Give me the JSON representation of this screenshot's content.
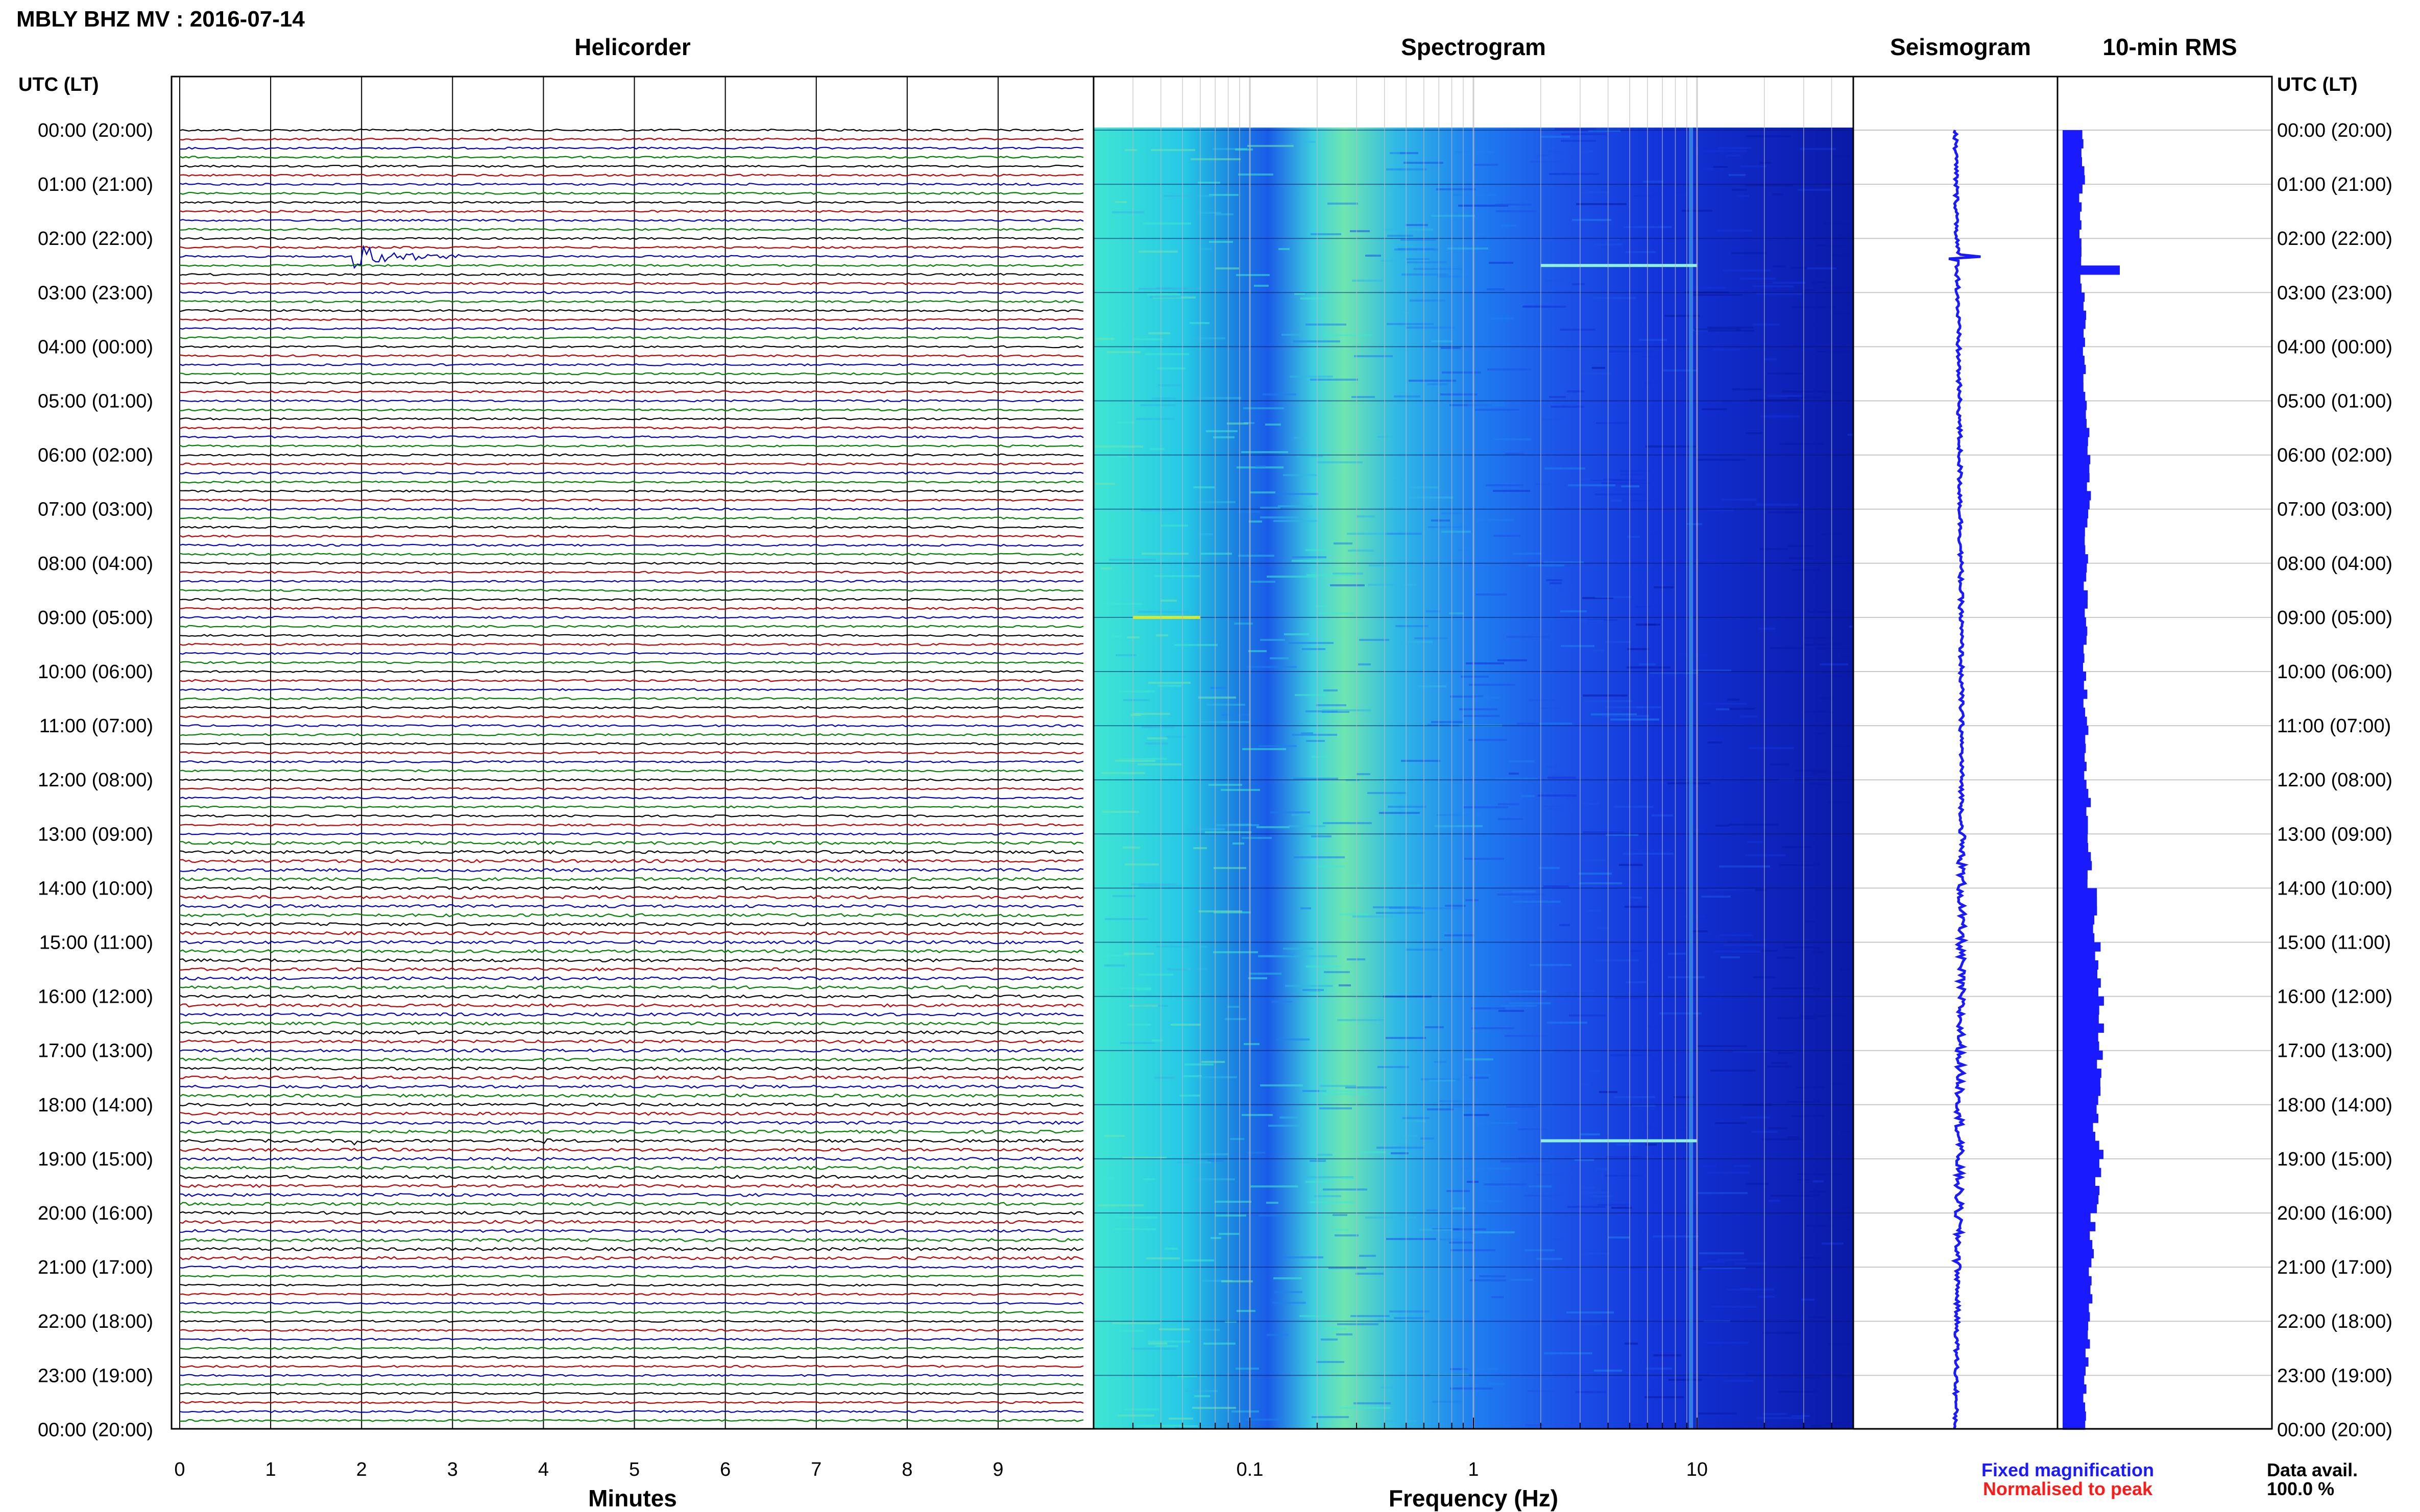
{
  "header": {
    "title": "MBLY BHZ MV : 2016-07-14",
    "panel_titles": [
      "Helicorder",
      "Spectrogram",
      "Seismogram",
      "10-min RMS"
    ],
    "left_axis_title": "UTC (LT)",
    "right_axis_title": "UTC (LT)"
  },
  "footer": {
    "minutes_label": "Minutes",
    "frequency_label": "Frequency (Hz)",
    "legend_fixed": "Fixed magnification",
    "legend_normalised": "Normalised to peak",
    "data_avail_label": "Data avail.",
    "data_avail_value": "100.0 %"
  },
  "colors": {
    "fixed_magnification": "#1a1aff",
    "normalised_to_peak": "#ff1a1a",
    "trace_cycle": [
      "#000000",
      "#c00000",
      "#0000c0",
      "#008000"
    ],
    "rms_bar": "#1a1aff",
    "seismogram": "#1a1aff"
  },
  "chart_data": [
    {
      "type": "line",
      "name": "helicorder",
      "title": "Helicorder",
      "xlabel": "Minutes",
      "x_ticks": [
        0,
        1,
        2,
        3,
        4,
        5,
        6,
        7,
        8,
        9
      ],
      "xlim": [
        0,
        10
      ],
      "rows_per_hour": 6,
      "hours": 24,
      "time_labels": [
        "00:00 (20:00)",
        "01:00 (21:00)",
        "02:00 (22:00)",
        "03:00 (23:00)",
        "04:00 (00:00)",
        "05:00 (01:00)",
        "06:00 (02:00)",
        "07:00 (03:00)",
        "08:00 (04:00)",
        "09:00 (05:00)",
        "10:00 (06:00)",
        "11:00 (07:00)",
        "12:00 (08:00)",
        "13:00 (09:00)",
        "14:00 (10:00)",
        "15:00 (11:00)",
        "16:00 (12:00)",
        "17:00 (13:00)",
        "18:00 (14:00)",
        "19:00 (15:00)",
        "20:00 (16:00)",
        "21:00 (17:00)",
        "22:00 (18:00)",
        "23:00 (19:00)",
        "00:00 (20:00)"
      ],
      "events": [
        {
          "time": "02:20",
          "minute": 1.9,
          "duration_min": 1.4,
          "amplitude": "large"
        },
        {
          "time": "01:00",
          "minute": 9.3,
          "duration_min": 0.2,
          "amplitude": "small"
        },
        {
          "time": "18:40",
          "minute": 1.9,
          "duration_min": 0.5,
          "amplitude": "medium"
        },
        {
          "time": "18:40",
          "minute": 4.0,
          "duration_min": 0.2,
          "amplitude": "medium"
        }
      ]
    },
    {
      "type": "heatmap",
      "name": "spectrogram",
      "title": "Spectrogram",
      "xlabel": "Frequency (Hz)",
      "x_scale": "log",
      "xlim": [
        0.02,
        50
      ],
      "x_tick_labels": [
        "0.1",
        "1",
        "10"
      ],
      "x_tick_values": [
        0.1,
        1,
        10
      ],
      "colormap": "jet",
      "features": [
        {
          "frequency_hz": 9.4,
          "description_kind": "persistent line"
        },
        {
          "time": "02:30",
          "frequency_range_hz": [
            2,
            10
          ],
          "description_kind": "transient"
        },
        {
          "time": "09:00",
          "frequency_range_hz": [
            0.03,
            0.06
          ],
          "description_kind": "transient"
        },
        {
          "time": "18:40",
          "frequency_range_hz": [
            2,
            10
          ],
          "description_kind": "transient"
        }
      ]
    },
    {
      "type": "line",
      "name": "seismogram",
      "title": "Seismogram",
      "orientation": "vertical",
      "events": [
        {
          "time": "02:20",
          "amplitude_rel": 1.0
        },
        {
          "time": "18:40",
          "amplitude_rel": 0.4
        }
      ]
    },
    {
      "type": "bar",
      "name": "rms",
      "title": "10-min RMS",
      "orientation": "horizontal",
      "unit": "relative",
      "hourly_values": [
        0.5,
        0.45,
        0.45,
        0.55,
        0.55,
        0.62,
        0.65,
        0.58,
        0.56,
        0.55,
        0.56,
        0.58,
        0.63,
        0.66,
        0.78,
        0.86,
        0.96,
        0.9,
        0.82,
        0.88,
        0.74,
        0.7,
        0.62,
        0.55
      ],
      "peaks": [
        {
          "time": "02:30",
          "value": 1.4
        },
        {
          "time": "18:50",
          "value": 1.0
        }
      ]
    }
  ]
}
